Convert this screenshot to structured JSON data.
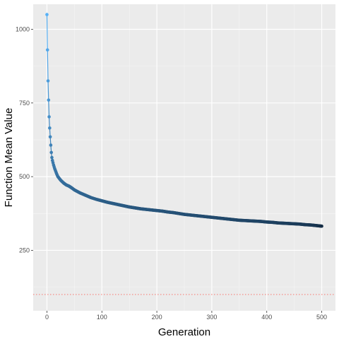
{
  "chart_data": {
    "type": "scatter",
    "xlabel": "Generation",
    "ylabel": "Function Mean Value",
    "xlim": [
      -25,
      525
    ],
    "ylim": [
      45,
      1085
    ],
    "x_ticks": [
      0,
      100,
      200,
      300,
      400,
      500
    ],
    "x_tick_labels": [
      "0",
      "100",
      "200",
      "300",
      "400",
      "500"
    ],
    "y_ticks": [
      250,
      500,
      750,
      1000
    ],
    "y_tick_labels": [
      "250",
      "500",
      "750",
      "1000"
    ],
    "grid": true,
    "legend": "none",
    "reference_line": {
      "y": 100,
      "style": "dotted",
      "color": "#f8766d"
    },
    "color_scale": {
      "low": "#132b43",
      "high": "#56b1f7"
    },
    "series": [
      {
        "x": [
          0,
          1,
          2,
          3,
          4,
          5,
          6,
          7,
          8,
          9,
          10,
          12,
          14,
          16,
          18,
          20,
          25,
          30,
          35,
          40,
          45,
          50,
          60,
          70,
          80,
          90,
          100,
          110,
          120,
          130,
          140,
          150,
          160,
          170,
          180,
          190,
          200,
          210,
          220,
          230,
          240,
          250,
          260,
          270,
          280,
          290,
          300,
          310,
          320,
          330,
          340,
          350,
          360,
          370,
          380,
          390,
          400,
          410,
          420,
          430,
          440,
          450,
          460,
          470,
          480,
          490,
          500
        ],
        "values": [
          1050,
          930,
          825,
          760,
          703,
          665,
          635,
          607,
          582,
          565,
          555,
          540,
          528,
          518,
          508,
          500,
          488,
          479,
          472,
          468,
          462,
          455,
          445,
          437,
          429,
          423,
          418,
          413,
          409,
          405,
          401,
          397,
          394,
          391,
          389,
          387,
          385,
          383,
          380,
          378,
          375,
          372,
          370,
          368,
          366,
          364,
          362,
          360,
          358,
          356,
          354,
          352,
          351,
          350,
          349,
          348,
          346,
          345,
          343,
          342,
          341,
          340,
          339,
          337,
          336,
          334,
          332
        ]
      }
    ]
  }
}
